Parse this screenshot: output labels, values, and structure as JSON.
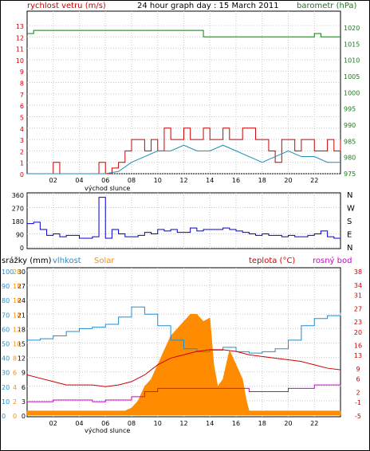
{
  "title": "24 hour graph day : 15 March 2011",
  "labels": {
    "wind": "rychlost vetru (m/s)",
    "baro": "barometr (hPa)",
    "rain": "srážky (mm)",
    "humidity": "vlhkost",
    "solar": "Solar",
    "temp": "teplota (°C)",
    "dew": "rosný bod",
    "sunrise": "východ slunce"
  },
  "colors": {
    "wind": "#cc0000",
    "wind_avg": "#1f8fb5",
    "baro": "#1a7a1a",
    "direction": "#0000cc",
    "humidity": "#1f8fd0",
    "temp": "#cc0000",
    "dew": "#cc00cc",
    "solar": "#ff8c00",
    "grid": "#c8c8c8"
  },
  "chart_data": [
    {
      "name": "wind-pressure",
      "type": "line",
      "x_ticks": [
        "02",
        "04",
        "06",
        "08",
        "10",
        "12",
        "14",
        "16",
        "18",
        "20",
        "22"
      ],
      "y_left_ticks": [
        0,
        1,
        2,
        3,
        4,
        5,
        6,
        7,
        8,
        9,
        10,
        11,
        12,
        13
      ],
      "y_right_ticks": [
        975,
        980,
        985,
        990,
        995,
        1000,
        1005,
        1010,
        1015,
        1020
      ],
      "series": [
        {
          "key": "gust",
          "axis": "left",
          "x": [
            0,
            0.5,
            1,
            1.5,
            2,
            2.5,
            3,
            3.5,
            4,
            4.5,
            5,
            5.5,
            6,
            6.5,
            7,
            7.5,
            8,
            8.5,
            9,
            9.5,
            10,
            10.5,
            11,
            11.5,
            12,
            12.5,
            13,
            13.5,
            14,
            14.5,
            15,
            15.5,
            16,
            16.5,
            17,
            17.5,
            18,
            18.5,
            19,
            19.5,
            20,
            20.5,
            21,
            21.5,
            22,
            22.5,
            23,
            23.5,
            24
          ],
          "y": [
            0,
            0,
            0,
            0,
            1,
            0,
            0,
            0,
            0,
            0,
            0,
            1,
            0,
            0.5,
            1,
            2,
            3,
            3,
            2,
            3,
            2,
            4,
            3,
            3,
            4,
            3,
            3,
            4,
            3,
            3,
            4,
            3,
            3,
            4,
            4,
            3,
            3,
            2,
            1,
            3,
            3,
            2,
            3,
            3,
            2,
            2,
            3,
            2,
            3
          ]
        },
        {
          "key": "avg",
          "axis": "left",
          "x": [
            0,
            1,
            2,
            3,
            4,
            5,
            6,
            7,
            8,
            9,
            10,
            11,
            12,
            13,
            14,
            15,
            16,
            17,
            18,
            19,
            20,
            21,
            22,
            23,
            24
          ],
          "y": [
            0,
            0,
            0,
            0,
            0,
            0,
            0,
            0.2,
            1,
            1.5,
            2,
            2,
            2.5,
            2,
            2,
            2.5,
            2,
            1.5,
            1,
            1.5,
            2,
            1.5,
            1.5,
            1,
            1
          ]
        },
        {
          "key": "pressure",
          "axis": "right",
          "x": [
            0,
            0.5,
            0.5,
            13.5,
            13.5,
            22,
            22,
            22.5,
            22.5,
            24
          ],
          "y": [
            1018,
            1018,
            1019,
            1019,
            1017,
            1017,
            1018,
            1018,
            1017,
            1017
          ]
        }
      ]
    },
    {
      "name": "direction",
      "type": "line",
      "y_ticks": [
        0,
        90,
        180,
        270,
        360
      ],
      "compass": [
        "N",
        "W",
        "S",
        "E",
        "N"
      ],
      "x": [
        0,
        0.5,
        1,
        1.5,
        2,
        2.5,
        3,
        3.5,
        4,
        4.5,
        5,
        5.5,
        6,
        6.5,
        7,
        7.5,
        8,
        8.5,
        9,
        9.5,
        10,
        10.5,
        11,
        11.5,
        12,
        12.5,
        13,
        13.5,
        14,
        14.5,
        15,
        15.5,
        16,
        16.5,
        17,
        17.5,
        18,
        18.5,
        19,
        19.5,
        20,
        20.5,
        21,
        21.5,
        22,
        22.5,
        23,
        23.5,
        24
      ],
      "y": [
        160,
        170,
        120,
        80,
        90,
        70,
        80,
        80,
        60,
        60,
        70,
        340,
        60,
        120,
        90,
        70,
        70,
        80,
        100,
        90,
        120,
        110,
        120,
        100,
        100,
        130,
        110,
        120,
        120,
        120,
        130,
        120,
        110,
        100,
        90,
        80,
        90,
        80,
        80,
        70,
        80,
        70,
        70,
        80,
        90,
        110,
        70,
        60,
        70
      ]
    },
    {
      "name": "climate",
      "type": "line",
      "y_rain_ticks": [
        0,
        3,
        6,
        9,
        12,
        15,
        18,
        21,
        24,
        27,
        30
      ],
      "y_hum_ticks": [
        0,
        10,
        20,
        30,
        40,
        50,
        60,
        70,
        80,
        90,
        100
      ],
      "y_solar_ticks": [
        0,
        2,
        4,
        6,
        8,
        10,
        12,
        14,
        16,
        18,
        20
      ],
      "y_temp_ticks": [
        -5,
        -1,
        2,
        6,
        9,
        13,
        16,
        20,
        23,
        27,
        31,
        34,
        38
      ],
      "series": [
        {
          "key": "humidity",
          "axis": "hum",
          "x": [
            0,
            1,
            2,
            3,
            4,
            5,
            6,
            7,
            8,
            9,
            10,
            11,
            12,
            13,
            14,
            15,
            16,
            17,
            18,
            19,
            20,
            21,
            22,
            23,
            24
          ],
          "y": [
            52,
            53,
            55,
            58,
            60,
            61,
            63,
            68,
            75,
            70,
            62,
            52,
            46,
            44,
            45,
            47,
            44,
            43,
            44,
            46,
            52,
            62,
            67,
            69,
            71
          ]
        },
        {
          "key": "solar",
          "axis": "solar",
          "x": [
            0,
            0.5,
            6.5,
            7,
            7.5,
            8,
            8.5,
            9,
            9.5,
            10,
            10.5,
            11,
            11.5,
            12,
            12.5,
            13,
            13.5,
            14,
            14.3,
            14.6,
            15,
            15.5,
            16,
            16.5,
            16.8,
            17,
            17.5,
            18,
            20,
            22,
            23.5,
            24
          ],
          "y": [
            0.6,
            0.6,
            0.6,
            0.6,
            0.6,
            1,
            2,
            4,
            5,
            7,
            9,
            11,
            12,
            13,
            14,
            14,
            13,
            13.5,
            7,
            4,
            5,
            9,
            7,
            5,
            2,
            0.6,
            0.6,
            0.6,
            0.6,
            0.6,
            0.6,
            0.6
          ]
        },
        {
          "key": "temp",
          "axis": "temp",
          "x": [
            0,
            1,
            2,
            3,
            4,
            5,
            6,
            7,
            8,
            9,
            10,
            11,
            12,
            13,
            14,
            15,
            16,
            17,
            18,
            19,
            20,
            21,
            22,
            23,
            24
          ],
          "y": [
            7,
            6,
            5,
            4,
            4,
            4,
            3.5,
            4,
            5,
            7,
            10,
            12,
            13,
            14,
            14.5,
            14.5,
            14,
            13,
            12.5,
            12,
            11.5,
            11,
            10,
            9,
            8.5
          ]
        },
        {
          "key": "dew",
          "axis": "temp",
          "x": [
            0,
            1,
            2,
            3,
            4,
            5,
            6,
            7,
            8,
            9,
            10,
            11,
            12,
            13,
            14,
            15,
            16,
            17,
            18,
            19,
            20,
            21,
            22,
            23,
            24
          ],
          "y": [
            -1,
            -1,
            -0.5,
            -0.5,
            -0.5,
            -1,
            -0.5,
            -0.5,
            0.5,
            2,
            3,
            3,
            3,
            3,
            3,
            3,
            3,
            2,
            2,
            2,
            3,
            3,
            4,
            4,
            3.5
          ]
        }
      ]
    }
  ]
}
